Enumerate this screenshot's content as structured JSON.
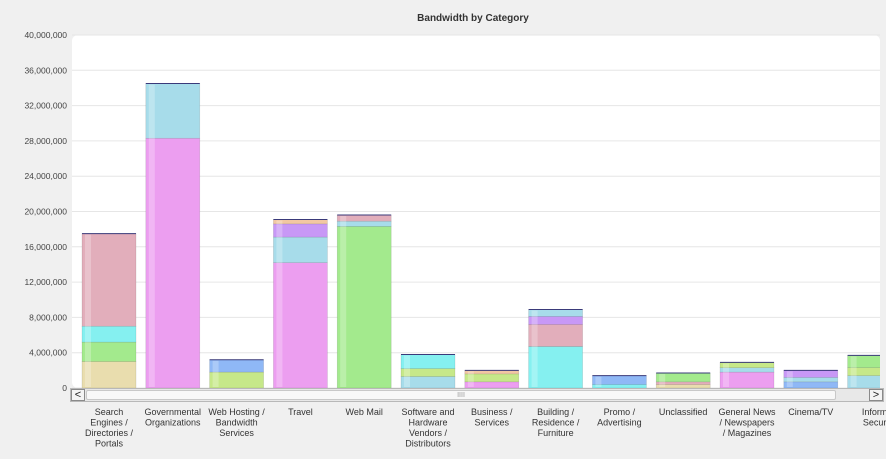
{
  "chart_data": {
    "type": "bar",
    "stacked": true,
    "title": "Bandwidth by Category",
    "xlabel": "",
    "ylabel": "",
    "ylim": [
      0,
      40000000
    ],
    "yticks": [
      "40,000,000",
      "36,000,000",
      "32,000,000",
      "28,000,000",
      "24,000,000",
      "20,000,000",
      "16,000,000",
      "12,000,000",
      "8,000,000",
      "4,000,000",
      "0"
    ],
    "grid": true,
    "categories": [
      "Search Engines / Directories / Portals",
      "Governmental Organizations",
      "Web Hosting / Bandwidth Services",
      "Travel",
      "Web Mail",
      "Software and Hardware Vendors / Distributors",
      "Business / Services",
      "Building / Residence / Furniture",
      "Promo / Advertising",
      "Unclassified",
      "General News / Newspapers / Magazines",
      "Cinema/TV",
      "Information Security"
    ],
    "category_labels": [
      [
        "Search",
        "Engines /",
        "Directories /",
        "Portals"
      ],
      [
        "Governmental",
        "Organizations"
      ],
      [
        "Web Hosting /",
        "Bandwidth",
        "Services"
      ],
      [
        "Travel"
      ],
      [
        "Web Mail"
      ],
      [
        "Software and",
        "Hardware",
        "Vendors /",
        "Distributors"
      ],
      [
        "Business /",
        "Services"
      ],
      [
        "Building /",
        "Residence /",
        "Furniture"
      ],
      [
        "Promo /",
        "Advertising"
      ],
      [
        "Unclassified"
      ],
      [
        "General News",
        "/ Newspapers",
        "/ Magazines"
      ],
      [
        "Cinema/TV"
      ],
      [
        "Inform",
        "Secur"
      ]
    ],
    "series_colors": [
      "#e9ddae",
      "#ec9ef0",
      "#a3ea8d",
      "#85f0f0",
      "#a7dcea",
      "#e2aebb",
      "#c898f6",
      "#c6e889",
      "#8fb8f6",
      "#f2c7a2"
    ],
    "stacks": [
      [
        {
          "c": 0,
          "v": 3000000
        },
        {
          "c": 2,
          "v": 2200000
        },
        {
          "c": 3,
          "v": 1800000
        },
        {
          "c": 5,
          "v": 10500000
        }
      ],
      [
        {
          "c": 1,
          "v": 28300000
        },
        {
          "c": 4,
          "v": 6200000
        }
      ],
      [
        {
          "c": 7,
          "v": 1800000
        },
        {
          "c": 8,
          "v": 1400000
        }
      ],
      [
        {
          "c": 1,
          "v": 14200000
        },
        {
          "c": 4,
          "v": 2900000
        },
        {
          "c": 6,
          "v": 1500000
        },
        {
          "c": 9,
          "v": 500000
        }
      ],
      [
        {
          "c": 2,
          "v": 18300000
        },
        {
          "c": 4,
          "v": 600000
        },
        {
          "c": 5,
          "v": 700000
        }
      ],
      [
        {
          "c": 4,
          "v": 1300000
        },
        {
          "c": 7,
          "v": 900000
        },
        {
          "c": 3,
          "v": 1600000
        }
      ],
      [
        {
          "c": 1,
          "v": 700000
        },
        {
          "c": 7,
          "v": 900000
        },
        {
          "c": 9,
          "v": 400000
        }
      ],
      [
        {
          "c": 3,
          "v": 4700000
        },
        {
          "c": 5,
          "v": 2500000
        },
        {
          "c": 6,
          "v": 900000
        },
        {
          "c": 4,
          "v": 800000
        }
      ],
      [
        {
          "c": 3,
          "v": 400000
        },
        {
          "c": 8,
          "v": 1000000
        }
      ],
      [
        {
          "c": 0,
          "v": 400000
        },
        {
          "c": 5,
          "v": 300000
        },
        {
          "c": 2,
          "v": 1000000
        }
      ],
      [
        {
          "c": 1,
          "v": 1800000
        },
        {
          "c": 4,
          "v": 500000
        },
        {
          "c": 7,
          "v": 600000
        }
      ],
      [
        {
          "c": 8,
          "v": 700000
        },
        {
          "c": 4,
          "v": 500000
        },
        {
          "c": 6,
          "v": 800000
        }
      ],
      [
        {
          "c": 4,
          "v": 1400000
        },
        {
          "c": 7,
          "v": 900000
        },
        {
          "c": 2,
          "v": 1400000
        }
      ]
    ]
  },
  "scrollbar": {
    "left_arrow": "<",
    "right_arrow": ">",
    "grip": "IIII"
  }
}
